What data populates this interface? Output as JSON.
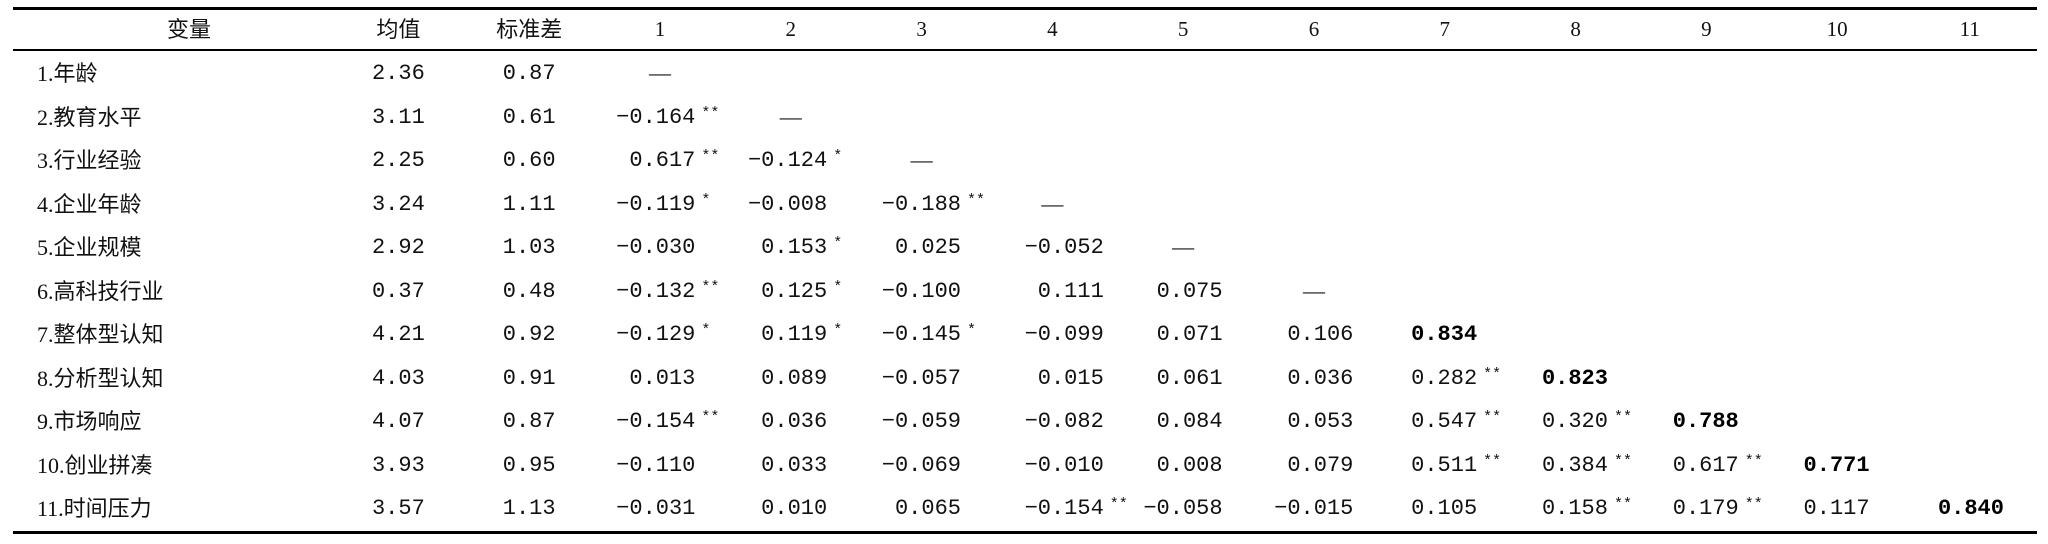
{
  "table": {
    "headers": [
      "变量",
      "均值",
      "标准差",
      "1",
      "2",
      "3",
      "4",
      "5",
      "6",
      "7",
      "8",
      "9",
      "10",
      "11"
    ],
    "rows": [
      {
        "label": "1.年龄",
        "mean": "2.36",
        "sd": "0.87",
        "corr": [
          {
            "v": "—"
          }
        ]
      },
      {
        "label": "2.教育水平",
        "mean": "3.11",
        "sd": "0.61",
        "corr": [
          {
            "v": "−0.164",
            "sig": "**"
          },
          {
            "v": "—"
          }
        ]
      },
      {
        "label": "3.行业经验",
        "mean": "2.25",
        "sd": "0.60",
        "corr": [
          {
            "v": "0.617",
            "sig": "**"
          },
          {
            "v": "−0.124",
            "sig": "*"
          },
          {
            "v": "—"
          }
        ]
      },
      {
        "label": "4.企业年龄",
        "mean": "3.24",
        "sd": "1.11",
        "corr": [
          {
            "v": "−0.119",
            "sig": "*"
          },
          {
            "v": "−0.008"
          },
          {
            "v": "−0.188",
            "sig": "**"
          },
          {
            "v": "—"
          }
        ]
      },
      {
        "label": "5.企业规模",
        "mean": "2.92",
        "sd": "1.03",
        "corr": [
          {
            "v": "−0.030"
          },
          {
            "v": "0.153",
            "sig": "*"
          },
          {
            "v": "0.025"
          },
          {
            "v": "−0.052"
          },
          {
            "v": "—"
          }
        ]
      },
      {
        "label": "6.高科技行业",
        "mean": "0.37",
        "sd": "0.48",
        "corr": [
          {
            "v": "−0.132",
            "sig": "**"
          },
          {
            "v": "0.125",
            "sig": "*"
          },
          {
            "v": "−0.100"
          },
          {
            "v": "0.111"
          },
          {
            "v": "0.075"
          },
          {
            "v": "—"
          }
        ]
      },
      {
        "label": "7.整体型认知",
        "mean": "4.21",
        "sd": "0.92",
        "corr": [
          {
            "v": "−0.129",
            "sig": "*"
          },
          {
            "v": "0.119",
            "sig": "*"
          },
          {
            "v": "−0.145",
            "sig": "*"
          },
          {
            "v": "−0.099"
          },
          {
            "v": "0.071"
          },
          {
            "v": "0.106"
          },
          {
            "v": "0.834"
          }
        ]
      },
      {
        "label": "8.分析型认知",
        "mean": "4.03",
        "sd": "0.91",
        "corr": [
          {
            "v": "0.013"
          },
          {
            "v": "0.089"
          },
          {
            "v": "−0.057"
          },
          {
            "v": "0.015"
          },
          {
            "v": "0.061"
          },
          {
            "v": "0.036"
          },
          {
            "v": "0.282",
            "sig": "**"
          },
          {
            "v": "0.823"
          }
        ]
      },
      {
        "label": "9.市场响应",
        "mean": "4.07",
        "sd": "0.87",
        "corr": [
          {
            "v": "−0.154",
            "sig": "**"
          },
          {
            "v": "0.036"
          },
          {
            "v": "−0.059"
          },
          {
            "v": "−0.082"
          },
          {
            "v": "0.084"
          },
          {
            "v": "0.053"
          },
          {
            "v": "0.547",
            "sig": "**"
          },
          {
            "v": "0.320",
            "sig": "**"
          },
          {
            "v": "0.788"
          }
        ]
      },
      {
        "label": "10.创业拼凑",
        "mean": "3.93",
        "sd": "0.95",
        "corr": [
          {
            "v": "−0.110"
          },
          {
            "v": "0.033"
          },
          {
            "v": "−0.069"
          },
          {
            "v": "−0.010"
          },
          {
            "v": "0.008"
          },
          {
            "v": "0.079"
          },
          {
            "v": "0.511",
            "sig": "**"
          },
          {
            "v": "0.384",
            "sig": "**"
          },
          {
            "v": "0.617",
            "sig": "**"
          },
          {
            "v": "0.771"
          }
        ]
      },
      {
        "label": "11.时间压力",
        "mean": "3.57",
        "sd": "1.13",
        "corr": [
          {
            "v": "−0.031"
          },
          {
            "v": "0.010"
          },
          {
            "v": "0.065"
          },
          {
            "v": "−0.154",
            "sig": "**"
          },
          {
            "v": "−0.058"
          },
          {
            "v": "−0.015"
          },
          {
            "v": "0.105"
          },
          {
            "v": "0.158",
            "sig": "**"
          },
          {
            "v": "0.179",
            "sig": "**"
          },
          {
            "v": "0.117"
          },
          {
            "v": "0.840"
          }
        ]
      }
    ]
  }
}
